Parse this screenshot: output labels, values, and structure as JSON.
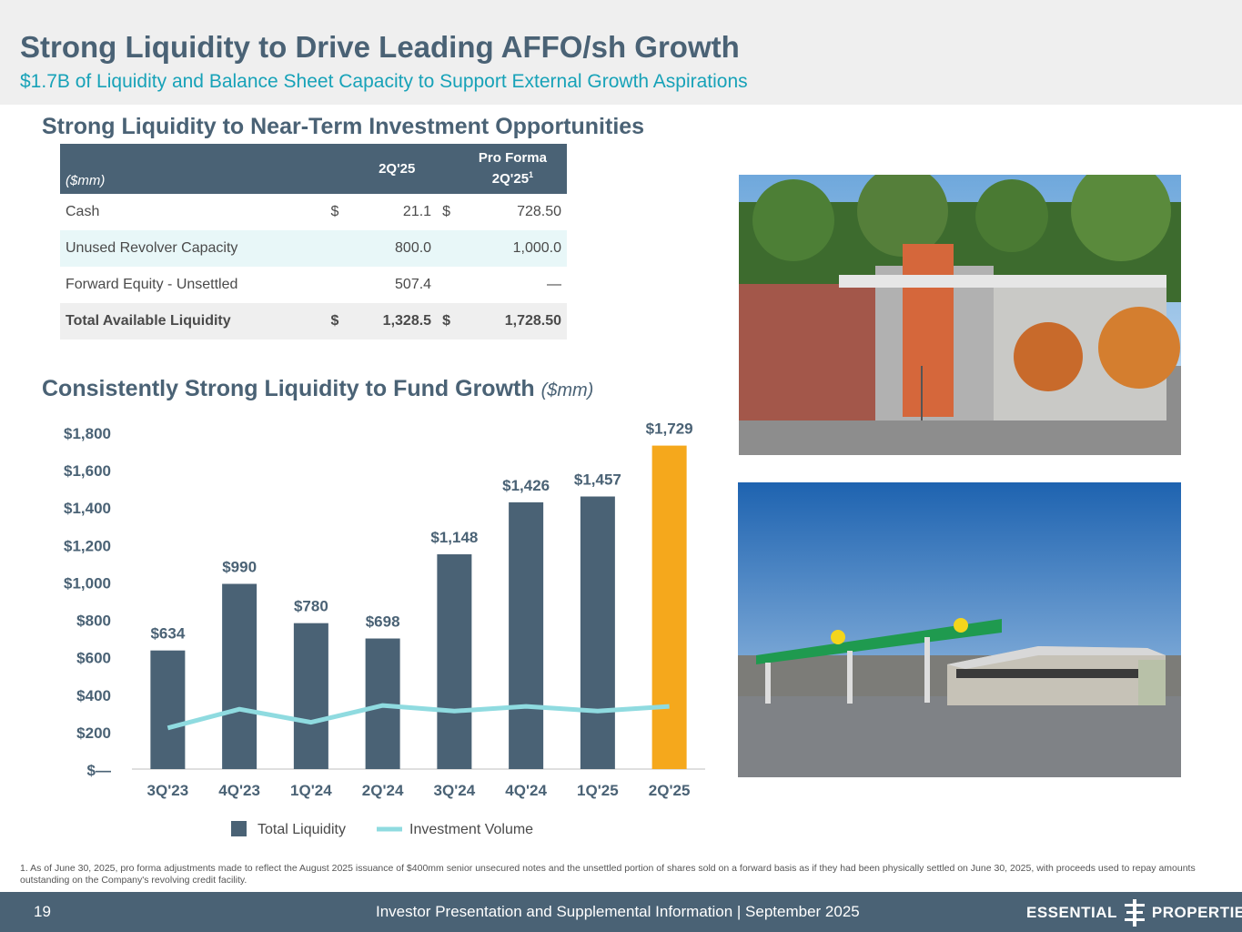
{
  "header": {
    "title": "Strong Liquidity to Drive Leading AFFO/sh Growth",
    "subtitle": "$1.7B of Liquidity and Balance Sheet Capacity to Support External Growth Aspirations"
  },
  "table_section": {
    "title": "Strong Liquidity to Near-Term Investment Opportunities",
    "unit_label": "($mm)",
    "col1": "2Q'25",
    "col2_line1": "Pro Forma",
    "col2_line2": "2Q'25",
    "col2_sup": "1",
    "rows": [
      {
        "label": "Cash",
        "c1_sym": "$",
        "c1": "21.1",
        "c2_sym": "$",
        "c2": "728.50"
      },
      {
        "label": "Unused Revolver Capacity",
        "c1_sym": "",
        "c1": "800.0",
        "c2_sym": "",
        "c2": "1,000.0"
      },
      {
        "label": "Forward Equity - Unsettled",
        "c1_sym": "",
        "c1": "507.4",
        "c2_sym": "",
        "c2": "—"
      },
      {
        "label": "Total Available Liquidity",
        "c1_sym": "$",
        "c1": "1,328.5",
        "c2_sym": "$",
        "c2": "1,728.50"
      }
    ]
  },
  "chart_section": {
    "title": "Consistently Strong Liquidity to Fund Growth",
    "unit": "($mm)"
  },
  "chart_data": {
    "type": "bar",
    "categories": [
      "3Q'23",
      "4Q'23",
      "1Q'24",
      "2Q'24",
      "3Q'24",
      "4Q'24",
      "1Q'25",
      "2Q'25"
    ],
    "series": [
      {
        "name": "Total Liquidity",
        "type": "bar",
        "values": [
          634,
          990,
          780,
          698,
          1148,
          1426,
          1457,
          1729
        ],
        "labels": [
          "$634",
          "$990",
          "$780",
          "$698",
          "$1,148",
          "$1,426",
          "$1,457",
          "$1,729"
        ]
      },
      {
        "name": "Investment Volume",
        "type": "line",
        "values": [
          220,
          320,
          250,
          340,
          310,
          335,
          310,
          335
        ]
      }
    ],
    "y_ticks": [
      "$—",
      "$200",
      "$400",
      "$600",
      "$800",
      "$1,000",
      "$1,200",
      "$1,400",
      "$1,600",
      "$1,800"
    ],
    "y_tick_values": [
      0,
      200,
      400,
      600,
      800,
      1000,
      1200,
      1400,
      1600,
      1800
    ],
    "ylim": [
      0,
      1800
    ],
    "legend_position": "bottom",
    "colors": {
      "bar": "#4a6275",
      "highlight_bar": "#f5a81c",
      "line": "#8fdbe0"
    },
    "highlight_index": 7
  },
  "footnote": "1.  As of June 30, 2025, pro forma adjustments made to reflect the August 2025 issuance of $400mm senior unsecured notes and the unsettled portion of shares sold on a forward basis as if they had been physically settled on June 30, 2025, with proceeds used to repay amounts outstanding on the Company's revolving credit facility.",
  "footer": {
    "page": "19",
    "text": "Investor Presentation and Supplemental Information |  September 2025",
    "logo_left": "ESSENTIAL",
    "logo_right": "PROPERTIES"
  }
}
